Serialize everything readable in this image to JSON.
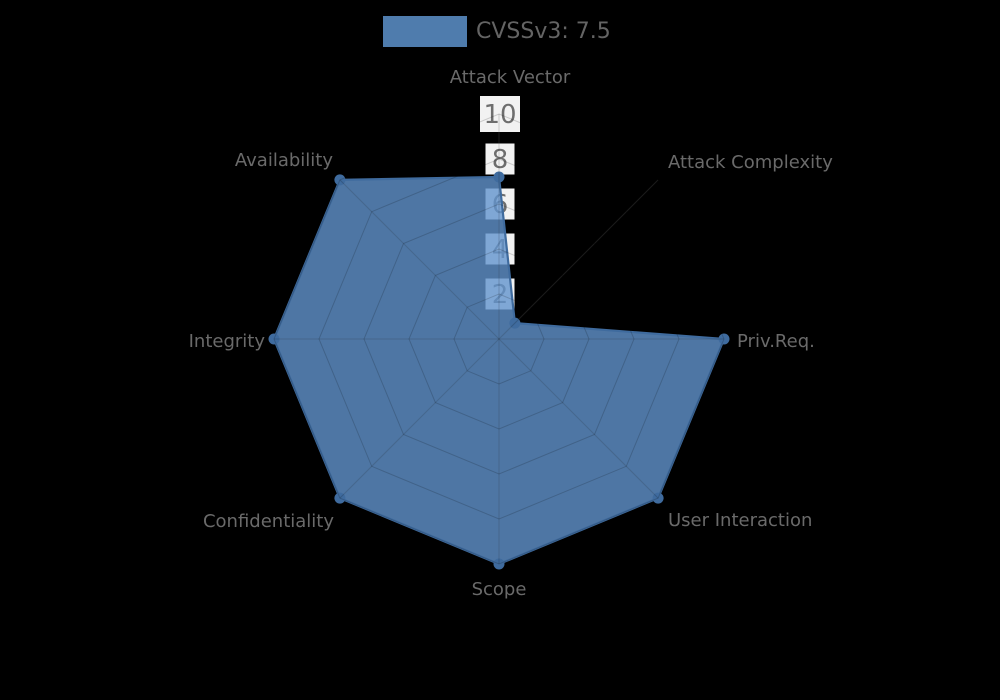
{
  "legend": {
    "label": "CVSSv3: 7.5",
    "swatch_color": "#4f7cad"
  },
  "chart_data": {
    "type": "radar",
    "title": "CVSSv3: 7.5",
    "axes": [
      "Attack Vector",
      "Attack Complexity",
      "Priv.Req.",
      "User Interaction",
      "Scope",
      "Confidentiality",
      "Integrity",
      "Availability"
    ],
    "series": [
      {
        "name": "CVSSv3: 7.5",
        "values": [
          7.2,
          1,
          10,
          10,
          10,
          10,
          10,
          10
        ]
      }
    ],
    "rmin": 0,
    "rmax": 10,
    "tick_interval": 2,
    "tick_values": [
      2,
      4,
      6,
      8,
      10
    ],
    "tick_labels": [
      "2",
      "4",
      "6",
      "8",
      "10"
    ],
    "tick_axis": "Attack Vector",
    "grid_shape": "polygon",
    "grid_rings": 5,
    "legend_position": "top",
    "colors": {
      "area_fill": "rgba(97,148,205,0.8)",
      "line": "#3f6b9e",
      "grid_over_fill": "rgba(0,0,0,0.17)",
      "spoke_faint": "rgba(255,255,255,0.13)",
      "tick_box_bg": "#ffffff",
      "tick_text": "#6e6e6e",
      "axis_label": "#6a6a6a",
      "legend_text": "#646464",
      "background": "#000000"
    }
  }
}
